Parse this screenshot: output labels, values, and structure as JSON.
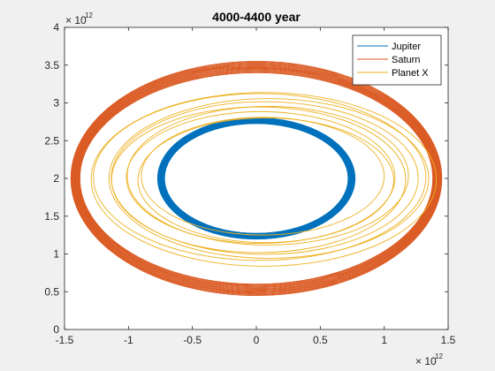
{
  "chart_data": {
    "type": "line",
    "title": "4000-4400 year",
    "xlabel": "",
    "ylabel": "",
    "xlim": [
      -1.5,
      1.5
    ],
    "ylim": [
      0,
      4
    ],
    "x_ticks": [
      "-1.5",
      "-1",
      "-0.5",
      "0",
      "0.5",
      "1",
      "1.5"
    ],
    "y_ticks": [
      "0",
      "0.5",
      "1",
      "1.5",
      "2",
      "2.5",
      "3",
      "3.5",
      "4"
    ],
    "x_exponent": {
      "base": "× 10",
      "power": "12"
    },
    "y_exponent": {
      "base": "× 10",
      "power": "12"
    },
    "grid": false,
    "legend_position": "top-right",
    "series": [
      {
        "name": "Jupiter",
        "color": "#0072BD",
        "center": [
          0,
          2
        ],
        "semi_axis_x": [
          0.72,
          0.77
        ],
        "semi_axis_y": [
          0.73,
          0.8
        ],
        "orbits": 34
      },
      {
        "name": "Saturn",
        "color": "#D95319",
        "center": [
          0,
          2
        ],
        "semi_axis_x": [
          1.38,
          1.45
        ],
        "semi_axis_y": [
          1.4,
          1.55
        ],
        "orbits": 14
      },
      {
        "name": "Planet X",
        "color": "#EDB120",
        "center": [
          0.05,
          2
        ],
        "semi_axis_x": [
          0.95,
          1.35
        ],
        "semi_axis_y": [
          0.78,
          1.15
        ],
        "orbits": 9
      }
    ]
  }
}
